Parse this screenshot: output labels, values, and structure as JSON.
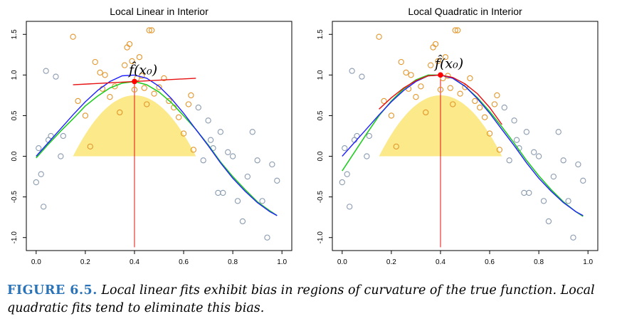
{
  "figure": {
    "label": "FIGURE 6.5.",
    "caption": "Local linear fits exhibit bias in regions of curvature of the true function. Local quadratic fits tend to eliminate this bias."
  },
  "colors": {
    "grey_points": "#8a9bb0",
    "orange_points": "#e3962c",
    "kernel_fill": "#fbe98a",
    "true_function": "#2020ff",
    "fit_curve": "#22cc22",
    "local_fit": "#e61010",
    "target_point": "#ff0000"
  },
  "chart_data": [
    {
      "type": "scatter",
      "title": "Local Linear in Interior",
      "annotation": "f̂(x₀)",
      "x0": 0.4,
      "fhat_x0": 0.92,
      "xlim": [
        -0.04,
        1.04
      ],
      "ylim": [
        -1.16,
        1.66
      ],
      "xticks": [
        0.0,
        0.2,
        0.4,
        0.6,
        0.8,
        1.0
      ],
      "yticks": [
        -1.0,
        -0.5,
        0.0,
        0.5,
        1.0,
        1.5
      ],
      "kernel": {
        "x_min": 0.15,
        "x_max": 0.65,
        "peak": 0.75
      },
      "local_fit_line": {
        "x": [
          0.15,
          0.65
        ],
        "y": [
          0.88,
          0.96
        ]
      },
      "true_function": {
        "x": [
          0.0,
          0.05,
          0.1,
          0.15,
          0.2,
          0.25,
          0.3,
          0.35,
          0.4,
          0.45,
          0.5,
          0.55,
          0.6,
          0.65,
          0.7,
          0.75,
          0.8,
          0.85,
          0.9,
          0.95,
          0.98
        ],
        "y": [
          0.0,
          0.17,
          0.34,
          0.51,
          0.67,
          0.81,
          0.92,
          0.99,
          1.0,
          0.96,
          0.86,
          0.71,
          0.53,
          0.33,
          0.13,
          -0.08,
          -0.27,
          -0.43,
          -0.57,
          -0.68,
          -0.73
        ]
      },
      "fitted_curve": {
        "x": [
          0.0,
          0.05,
          0.1,
          0.15,
          0.2,
          0.25,
          0.3,
          0.35,
          0.4,
          0.45,
          0.5,
          0.55,
          0.6,
          0.65,
          0.7,
          0.75,
          0.8,
          0.85,
          0.9,
          0.95,
          0.98
        ],
        "y": [
          -0.02,
          0.15,
          0.31,
          0.46,
          0.62,
          0.74,
          0.84,
          0.9,
          0.92,
          0.88,
          0.79,
          0.66,
          0.5,
          0.33,
          0.14,
          -0.07,
          -0.25,
          -0.41,
          -0.56,
          -0.67,
          -0.73
        ]
      },
      "points_outside": {
        "x": [
          0.0,
          0.01,
          0.02,
          0.03,
          0.04,
          0.05,
          0.06,
          0.08,
          0.1,
          0.11,
          0.66,
          0.68,
          0.7,
          0.71,
          0.72,
          0.74,
          0.75,
          0.76,
          0.78,
          0.8,
          0.82,
          0.84,
          0.86,
          0.88,
          0.9,
          0.92,
          0.94,
          0.96,
          0.98
        ],
        "y": [
          -0.32,
          0.1,
          -0.22,
          -0.62,
          1.05,
          0.2,
          0.25,
          0.98,
          0.0,
          0.25,
          0.6,
          -0.05,
          0.44,
          0.2,
          0.1,
          -0.45,
          0.3,
          -0.45,
          0.05,
          0.0,
          -0.55,
          -0.8,
          -0.25,
          0.3,
          -0.05,
          -0.55,
          -1.0,
          -0.1,
          -0.3
        ]
      },
      "points_inside": {
        "x": [
          0.15,
          0.17,
          0.2,
          0.22,
          0.24,
          0.26,
          0.27,
          0.28,
          0.3,
          0.32,
          0.34,
          0.36,
          0.37,
          0.38,
          0.39,
          0.4,
          0.41,
          0.42,
          0.43,
          0.44,
          0.45,
          0.46,
          0.47,
          0.48,
          0.5,
          0.52,
          0.54,
          0.56,
          0.58,
          0.6,
          0.62,
          0.63,
          0.64
        ],
        "y": [
          1.47,
          0.68,
          0.5,
          0.12,
          1.16,
          1.03,
          0.83,
          1.0,
          0.73,
          0.86,
          0.54,
          1.12,
          1.34,
          1.38,
          1.17,
          0.82,
          0.96,
          1.22,
          0.99,
          0.84,
          0.64,
          1.55,
          1.55,
          0.77,
          0.85,
          0.96,
          0.68,
          0.6,
          0.48,
          0.28,
          0.64,
          0.75,
          0.08
        ]
      }
    },
    {
      "type": "scatter",
      "title": "Local Quadratic in Interior",
      "annotation": "f̂(x₀)",
      "x0": 0.4,
      "fhat_x0": 1.0,
      "xlim": [
        -0.04,
        1.04
      ],
      "ylim": [
        -1.16,
        1.66
      ],
      "xticks": [
        0.0,
        0.2,
        0.4,
        0.6,
        0.8,
        1.0
      ],
      "yticks": [
        -1.0,
        -0.5,
        0.0,
        0.5,
        1.0,
        1.5
      ],
      "kernel": {
        "x_min": 0.15,
        "x_max": 0.65,
        "peak": 0.75
      },
      "local_fit_line": {
        "x": [
          0.15,
          0.2,
          0.25,
          0.3,
          0.35,
          0.4,
          0.45,
          0.5,
          0.55,
          0.6,
          0.65
        ],
        "y": [
          0.58,
          0.72,
          0.84,
          0.93,
          0.99,
          1.0,
          0.97,
          0.89,
          0.77,
          0.6,
          0.39
        ]
      },
      "true_function": {
        "x": [
          0.0,
          0.05,
          0.1,
          0.15,
          0.2,
          0.25,
          0.3,
          0.35,
          0.4,
          0.45,
          0.5,
          0.55,
          0.6,
          0.65,
          0.7,
          0.75,
          0.8,
          0.85,
          0.9,
          0.95,
          0.98
        ],
        "y": [
          0.0,
          0.17,
          0.34,
          0.51,
          0.67,
          0.81,
          0.92,
          0.99,
          1.0,
          0.96,
          0.86,
          0.71,
          0.53,
          0.33,
          0.13,
          -0.08,
          -0.27,
          -0.43,
          -0.57,
          -0.68,
          -0.73
        ]
      },
      "fitted_curve": {
        "x": [
          0.0,
          0.05,
          0.1,
          0.15,
          0.2,
          0.25,
          0.3,
          0.35,
          0.4,
          0.45,
          0.5,
          0.55,
          0.6,
          0.65,
          0.7,
          0.75,
          0.8,
          0.85,
          0.9,
          0.95,
          0.98
        ],
        "y": [
          -0.18,
          0.05,
          0.28,
          0.5,
          0.68,
          0.83,
          0.94,
          1.0,
          1.0,
          0.96,
          0.86,
          0.72,
          0.55,
          0.36,
          0.16,
          -0.05,
          -0.24,
          -0.41,
          -0.56,
          -0.68,
          -0.74
        ]
      },
      "points_outside": {
        "x": [
          0.0,
          0.01,
          0.02,
          0.03,
          0.04,
          0.05,
          0.06,
          0.08,
          0.1,
          0.11,
          0.66,
          0.68,
          0.7,
          0.71,
          0.72,
          0.74,
          0.75,
          0.76,
          0.78,
          0.8,
          0.82,
          0.84,
          0.86,
          0.88,
          0.9,
          0.92,
          0.94,
          0.96,
          0.98
        ],
        "y": [
          -0.32,
          0.1,
          -0.22,
          -0.62,
          1.05,
          0.2,
          0.25,
          0.98,
          0.0,
          0.25,
          0.6,
          -0.05,
          0.44,
          0.2,
          0.1,
          -0.45,
          0.3,
          -0.45,
          0.05,
          0.0,
          -0.55,
          -0.8,
          -0.25,
          0.3,
          -0.05,
          -0.55,
          -1.0,
          -0.1,
          -0.3
        ]
      },
      "points_inside": {
        "x": [
          0.15,
          0.17,
          0.2,
          0.22,
          0.24,
          0.26,
          0.27,
          0.28,
          0.3,
          0.32,
          0.34,
          0.36,
          0.37,
          0.38,
          0.39,
          0.4,
          0.41,
          0.42,
          0.43,
          0.44,
          0.45,
          0.46,
          0.47,
          0.48,
          0.5,
          0.52,
          0.54,
          0.56,
          0.58,
          0.6,
          0.62,
          0.63,
          0.64
        ],
        "y": [
          1.47,
          0.68,
          0.5,
          0.12,
          1.16,
          1.03,
          0.83,
          1.0,
          0.73,
          0.86,
          0.54,
          1.12,
          1.34,
          1.38,
          1.17,
          0.82,
          0.96,
          1.22,
          0.99,
          0.84,
          0.64,
          1.55,
          1.55,
          0.77,
          0.85,
          0.96,
          0.68,
          0.6,
          0.48,
          0.28,
          0.64,
          0.75,
          0.08
        ]
      }
    }
  ]
}
